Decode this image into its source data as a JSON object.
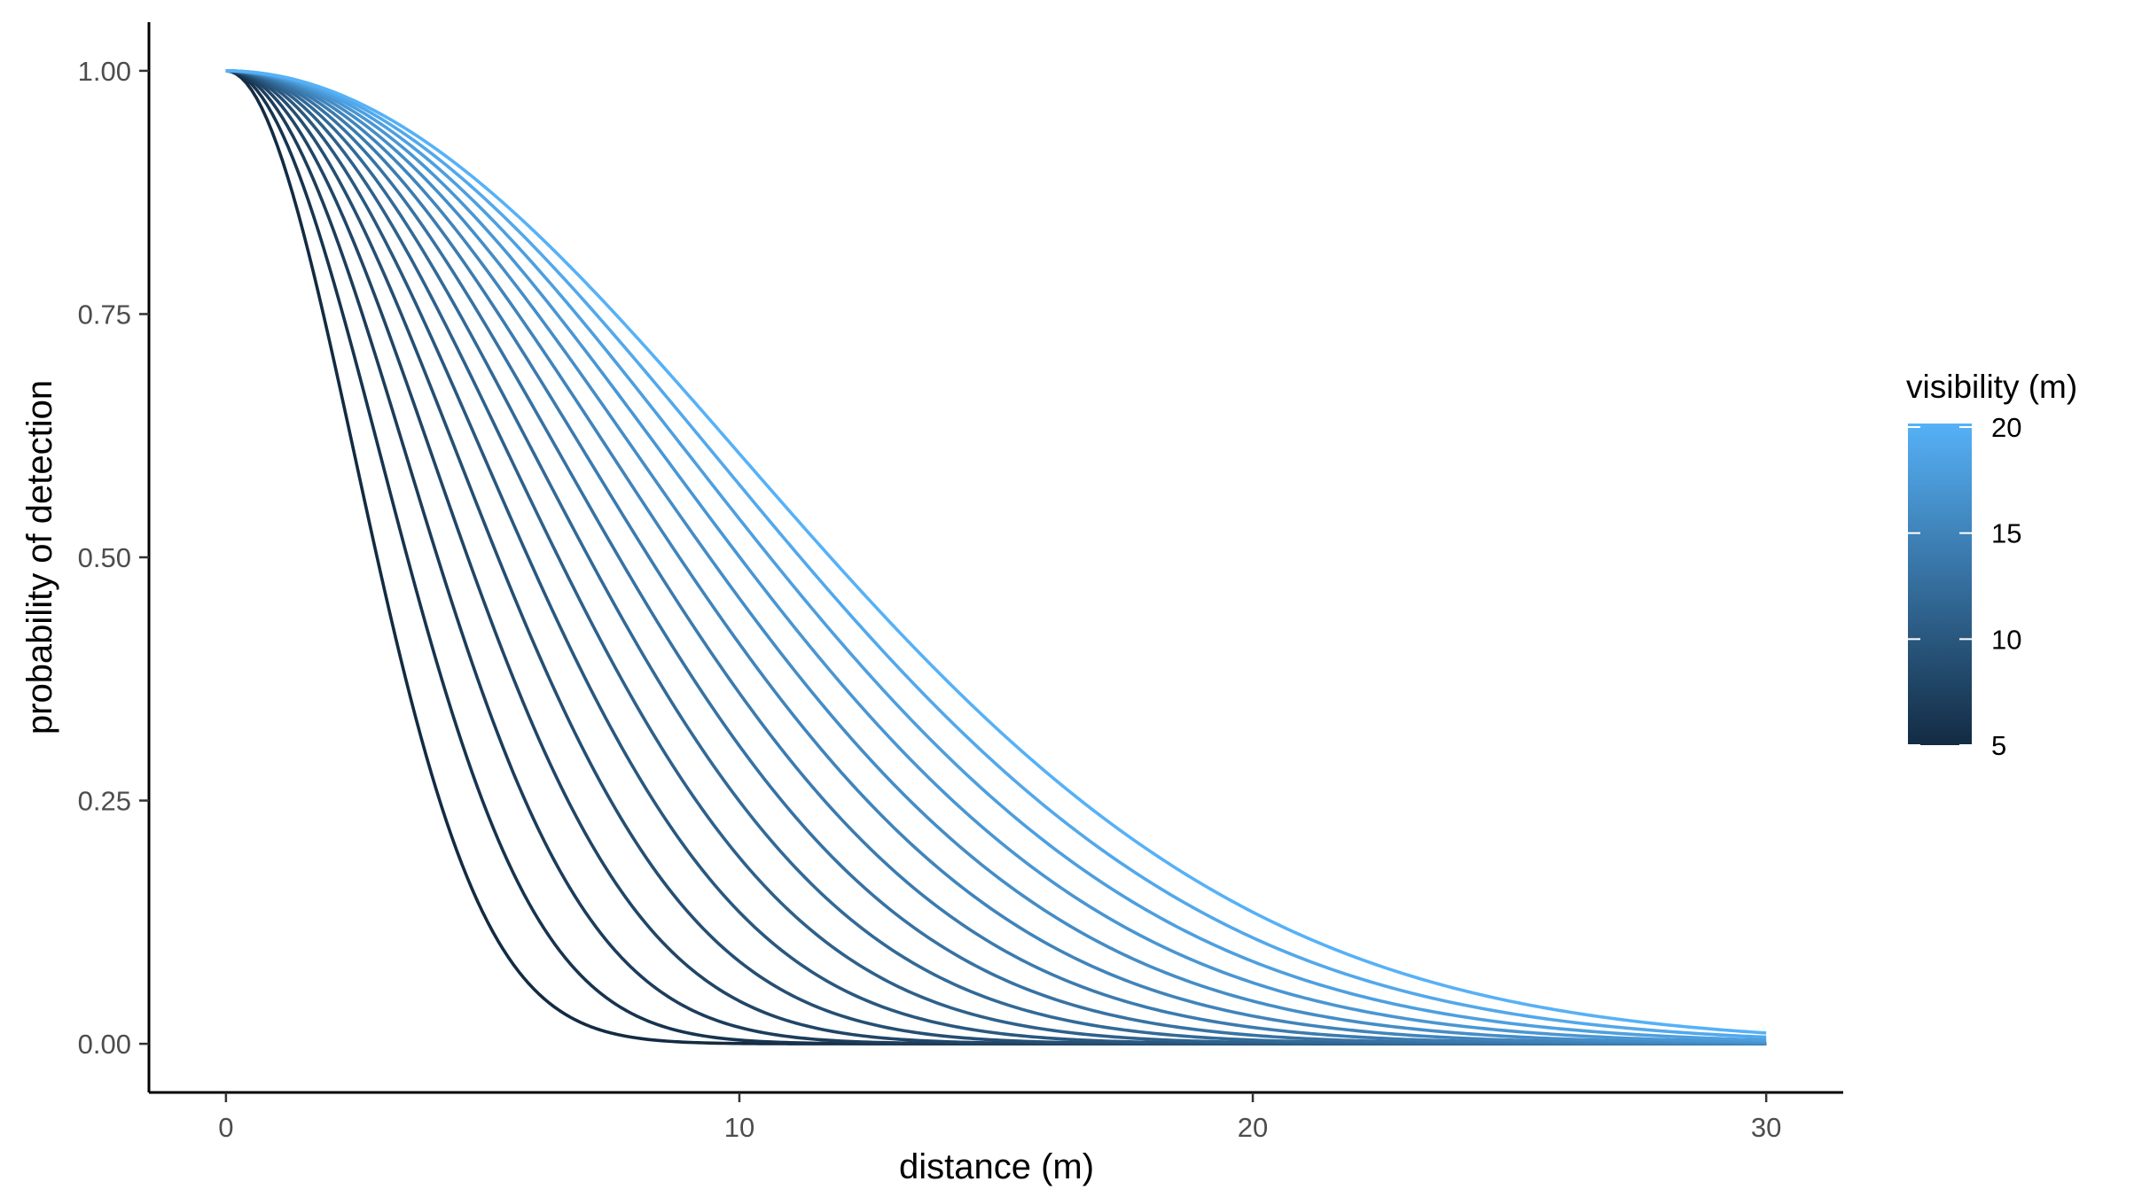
{
  "chart_data": {
    "type": "line",
    "title": "",
    "xlabel": "distance (m)",
    "ylabel": "probability of detection",
    "xlim": [
      -1.5,
      31.5
    ],
    "ylim": [
      -0.05,
      1.05
    ],
    "x_ticks": [
      0,
      10,
      20,
      30
    ],
    "x_tick_labels": [
      "0",
      "10",
      "20",
      "30"
    ],
    "y_ticks": [
      0,
      0.25,
      0.5,
      0.75,
      1
    ],
    "y_tick_labels": [
      "0.00",
      "0.25",
      "0.50",
      "0.75",
      "1.00"
    ],
    "x_range": [
      0,
      30
    ],
    "curve_shape": "half-normal detection function p(d) = exp(-d^2 / (2*sigma^2)), sigma = visibility / 2",
    "series": [
      {
        "visibility": 5
      },
      {
        "visibility": 6
      },
      {
        "visibility": 7
      },
      {
        "visibility": 8
      },
      {
        "visibility": 9
      },
      {
        "visibility": 10
      },
      {
        "visibility": 11
      },
      {
        "visibility": 12
      },
      {
        "visibility": 13
      },
      {
        "visibility": 14
      },
      {
        "visibility": 15
      },
      {
        "visibility": 16
      },
      {
        "visibility": 17
      },
      {
        "visibility": 18
      },
      {
        "visibility": 19
      },
      {
        "visibility": 20
      }
    ],
    "grid": false,
    "legend": {
      "title": "visibility (m)",
      "type": "colorbar",
      "placement": "right",
      "min": 5,
      "max": 20,
      "ticks": [
        5,
        10,
        15,
        20
      ],
      "tick_labels": [
        "5",
        "10",
        "15",
        "20"
      ],
      "color_low": "#132B43",
      "color_high": "#56B1F7"
    }
  }
}
